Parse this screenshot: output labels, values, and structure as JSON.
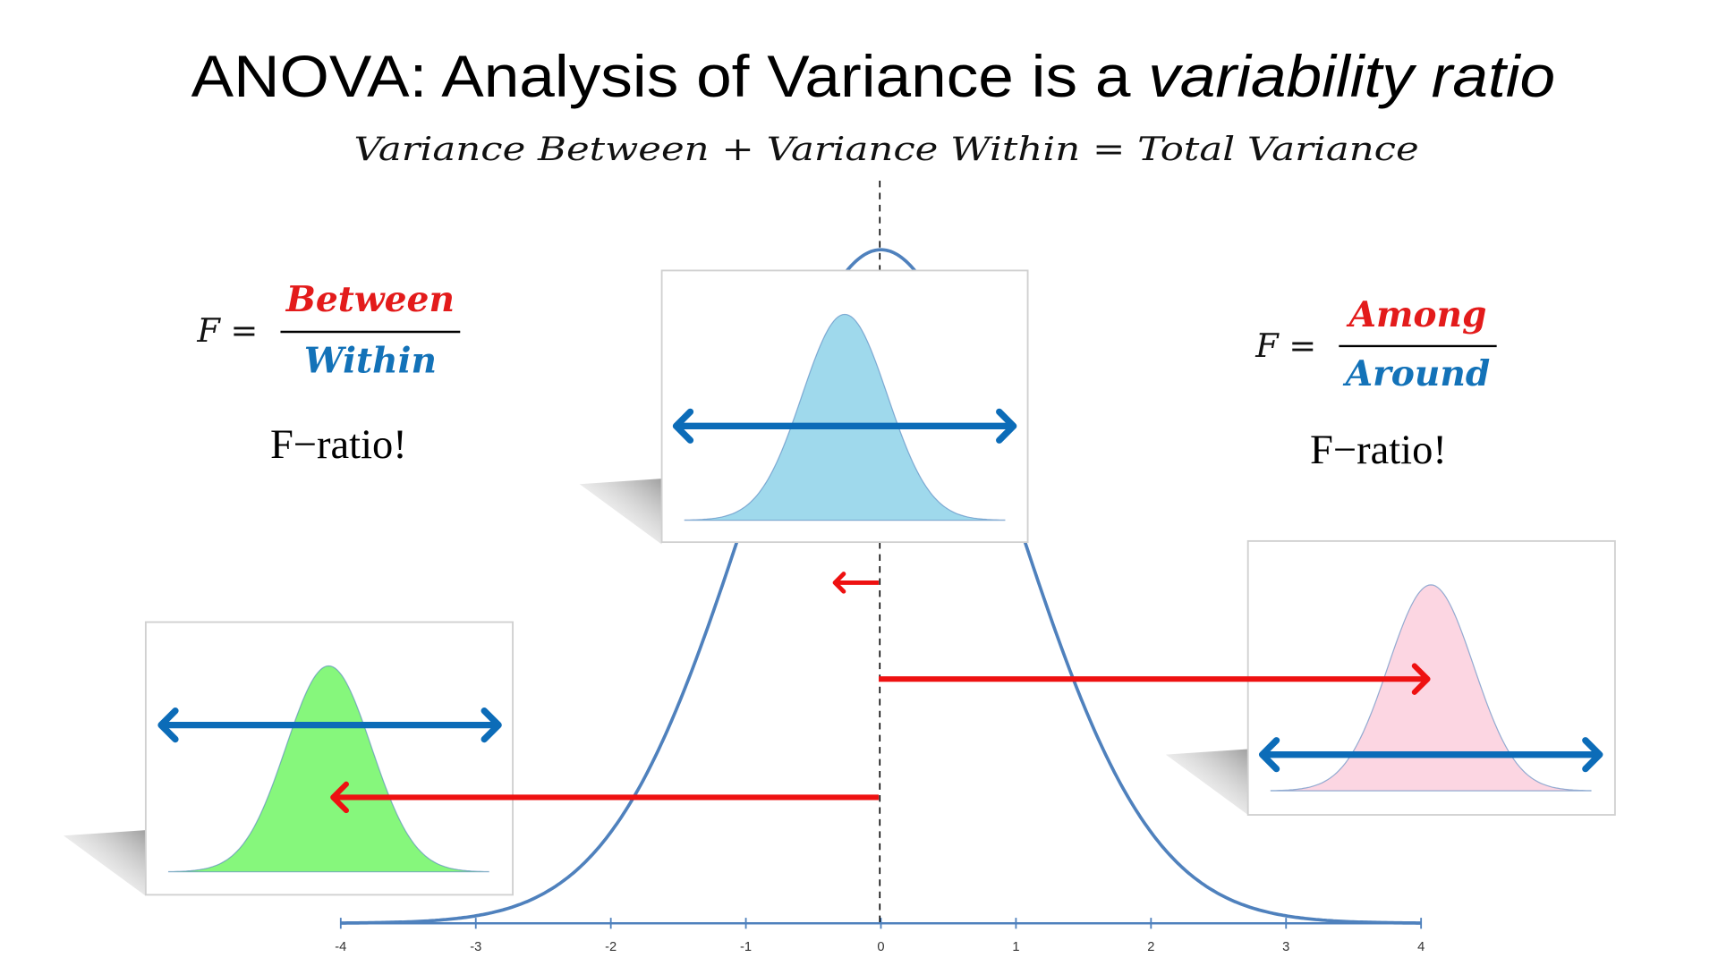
{
  "title": {
    "main": "ANOVA: Analysis of Variance is a ",
    "emphasis": "variability ratio"
  },
  "equation": "Variance Between + Variance Within = Total Variance",
  "left_formula": {
    "lhs": "F =",
    "numerator": "Between",
    "denominator": "Within",
    "caption": "F−ratio!"
  },
  "right_formula": {
    "lhs": "F =",
    "numerator": "Among",
    "denominator": "Around",
    "caption": "F−ratio!"
  },
  "axis": {
    "ticks": [
      "-4",
      "-3",
      "-2",
      "-1",
      "0",
      "1",
      "2",
      "3",
      "4"
    ]
  },
  "colors": {
    "curve": "#4f81bd",
    "spread_arrow": "#0c6cb8",
    "mean_arrow": "#ee1111",
    "numerator": "#e31b1b",
    "denominator": "#1372b8",
    "center_group_fill": "#9fd9ec",
    "left_group_fill": "#86f77c",
    "right_group_fill": "#fcd6e2"
  }
}
